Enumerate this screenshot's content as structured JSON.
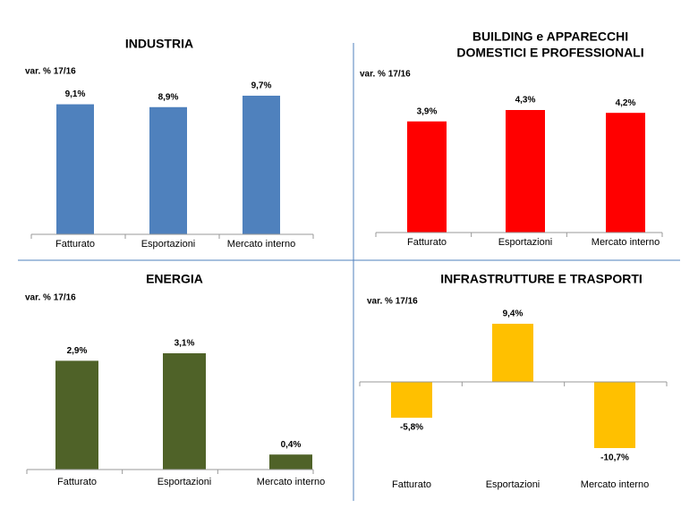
{
  "chart_data": [
    {
      "type": "bar",
      "title": [
        "INDUSTRIA"
      ],
      "subtitle": "var. % 17/16",
      "categories": [
        "Fatturato",
        "Esportazioni",
        "Mercato interno"
      ],
      "values": [
        9.1,
        8.9,
        9.7
      ],
      "value_labels": [
        "9,1%",
        "8,9%",
        "9,7%"
      ],
      "color": "#4f81bd"
    },
    {
      "type": "bar",
      "title": [
        "BUILDING e APPARECCHI",
        "DOMESTICI E PROFESSIONALI"
      ],
      "subtitle": "var. % 17/16",
      "categories": [
        "Fatturato",
        "Esportazioni",
        "Mercato interno"
      ],
      "values": [
        3.9,
        4.3,
        4.2
      ],
      "value_labels": [
        "3,9%",
        "4,3%",
        "4,2%"
      ],
      "color": "#ff0000"
    },
    {
      "type": "bar",
      "title": [
        "ENERGIA"
      ],
      "subtitle": "var. % 17/16",
      "categories": [
        "Fatturato",
        "Esportazioni",
        "Mercato interno"
      ],
      "values": [
        2.9,
        3.1,
        0.4
      ],
      "value_labels": [
        "2,9%",
        "3,1%",
        "0,4%"
      ],
      "color": "#4f6228"
    },
    {
      "type": "bar",
      "title": [
        "INFRASTRUTTURE E TRASPORTI"
      ],
      "subtitle": "var. % 17/16",
      "categories": [
        "Fatturato",
        "Esportazioni",
        "Mercato interno"
      ],
      "values": [
        -5.8,
        9.4,
        -10.7
      ],
      "value_labels": [
        "-5,8%",
        "9,4%",
        "-10,7%"
      ],
      "color": "#ffc000"
    }
  ]
}
